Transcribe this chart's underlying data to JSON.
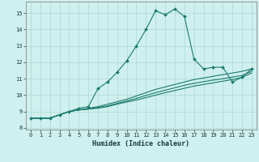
{
  "xlabel": "Humidex (Indice chaleur)",
  "background_color": "#cff0ee",
  "grid_color": "#aad8d5",
  "line_color": "#1a7a6e",
  "x_values": [
    0,
    1,
    2,
    3,
    4,
    5,
    6,
    7,
    8,
    9,
    10,
    11,
    12,
    13,
    14,
    15,
    16,
    17,
    18,
    19,
    20,
    21,
    22,
    23
  ],
  "series1": [
    8.6,
    8.6,
    8.6,
    8.8,
    9.0,
    9.2,
    9.3,
    10.4,
    10.8,
    11.4,
    12.1,
    13.0,
    14.0,
    15.15,
    14.9,
    15.25,
    14.8,
    12.2,
    11.6,
    11.7,
    11.7,
    10.8,
    11.1,
    11.6
  ],
  "series2": [
    8.6,
    8.6,
    8.6,
    8.8,
    9.0,
    9.1,
    9.2,
    9.3,
    9.45,
    9.6,
    9.75,
    9.95,
    10.15,
    10.35,
    10.5,
    10.65,
    10.8,
    10.95,
    11.05,
    11.15,
    11.25,
    11.35,
    11.45,
    11.6
  ],
  "series3": [
    8.6,
    8.6,
    8.6,
    8.8,
    9.0,
    9.1,
    9.15,
    9.25,
    9.35,
    9.5,
    9.65,
    9.8,
    9.98,
    10.15,
    10.3,
    10.45,
    10.6,
    10.72,
    10.82,
    10.92,
    11.0,
    11.1,
    11.2,
    11.45
  ],
  "series4": [
    8.6,
    8.6,
    8.6,
    8.8,
    9.0,
    9.1,
    9.15,
    9.2,
    9.3,
    9.45,
    9.58,
    9.7,
    9.85,
    10.0,
    10.15,
    10.28,
    10.42,
    10.55,
    10.65,
    10.75,
    10.85,
    10.95,
    11.08,
    11.35
  ],
  "xlim": [
    -0.5,
    23.5
  ],
  "ylim": [
    7.9,
    15.7
  ],
  "yticks": [
    8,
    9,
    10,
    11,
    12,
    13,
    14,
    15
  ],
  "xticks": [
    0,
    1,
    2,
    3,
    4,
    5,
    6,
    7,
    8,
    9,
    10,
    11,
    12,
    13,
    14,
    15,
    16,
    17,
    18,
    19,
    20,
    21,
    22,
    23
  ],
  "xlabel_fontsize": 6.0,
  "tick_fontsize": 5.0,
  "spine_color": "#888888",
  "marker": "D",
  "markersize": 2.0,
  "linewidth": 0.8
}
